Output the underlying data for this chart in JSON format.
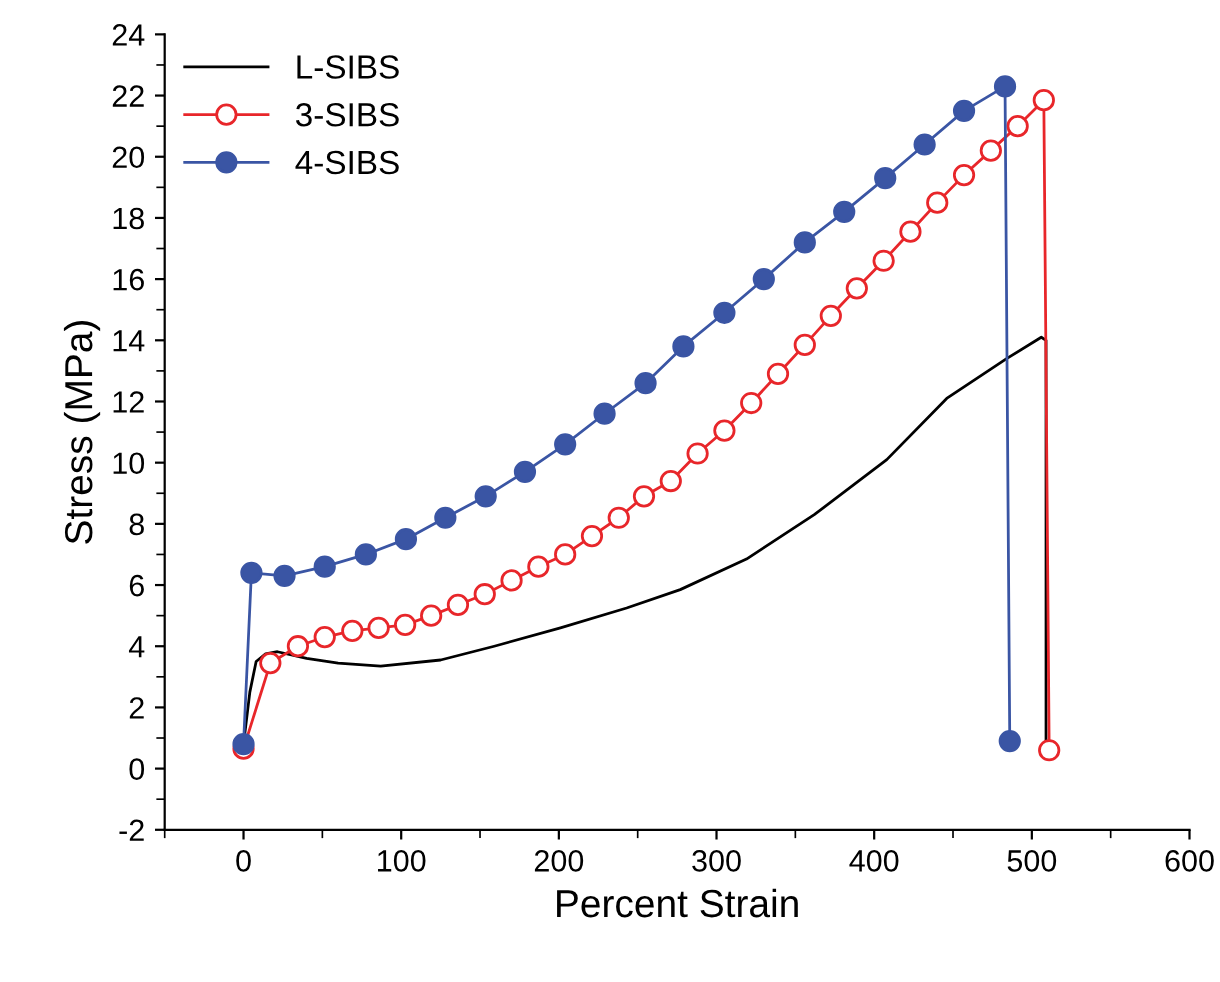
{
  "chart_data": {
    "type": "line",
    "xlabel": "Percent Strain",
    "ylabel": "Stress (MPa)",
    "xlim": [
      -50,
      600
    ],
    "xticks": [
      0,
      100,
      200,
      300,
      400,
      500,
      600
    ],
    "ylim": [
      -2,
      24
    ],
    "yticks": [
      -2,
      0,
      2,
      4,
      6,
      8,
      10,
      12,
      14,
      16,
      18,
      20,
      22,
      24
    ],
    "grid": false,
    "legend": "top left",
    "series": [
      {
        "name": "L-SIBS",
        "color": "#000000",
        "marker": "none",
        "x": [
          0,
          4,
          8,
          14,
          21.5,
          40,
          60,
          87,
          125,
          159,
          201,
          243,
          277,
          319,
          362,
          408,
          446,
          484,
          506,
          509,
          509
        ],
        "values": [
          0.8,
          2.5,
          3.5,
          3.75,
          3.82,
          3.6,
          3.45,
          3.35,
          3.55,
          4.0,
          4.6,
          5.25,
          5.85,
          6.85,
          8.3,
          10.1,
          12.1,
          13.4,
          14.1,
          14.0,
          0.5
        ]
      },
      {
        "name": "3-SIBS",
        "color": "#e8262a",
        "marker": "circle",
        "x": [
          0,
          17,
          34.5,
          51.5,
          69,
          85.7,
          102.5,
          119,
          136,
          153,
          170,
          187,
          204,
          221,
          238,
          254,
          271,
          288,
          305,
          322,
          339,
          356,
          372.5,
          389,
          406,
          423,
          440,
          457,
          474,
          491,
          507.6,
          511
        ],
        "values": [
          0.65,
          3.45,
          4.0,
          4.3,
          4.5,
          4.6,
          4.7,
          5.0,
          5.35,
          5.7,
          6.15,
          6.6,
          7.0,
          7.6,
          8.2,
          8.9,
          9.4,
          10.3,
          11.05,
          11.95,
          12.9,
          13.85,
          14.8,
          15.7,
          16.6,
          17.55,
          18.5,
          19.4,
          20.2,
          21.0,
          21.85,
          0.6
        ]
      },
      {
        "name": "4-SIBS",
        "color": "#3a55a4",
        "marker": "circle",
        "x": [
          0,
          5,
          26,
          51.5,
          77.6,
          103,
          128,
          153.6,
          178.5,
          204,
          229,
          255,
          279,
          305,
          330,
          356,
          381,
          407,
          432,
          457,
          483,
          486
        ],
        "values": [
          0.8,
          6.4,
          6.3,
          6.6,
          7.0,
          7.5,
          8.2,
          8.9,
          9.7,
          10.6,
          11.6,
          12.6,
          13.8,
          14.9,
          16.0,
          17.2,
          18.2,
          19.3,
          20.4,
          21.5,
          22.3,
          0.9
        ]
      }
    ]
  }
}
